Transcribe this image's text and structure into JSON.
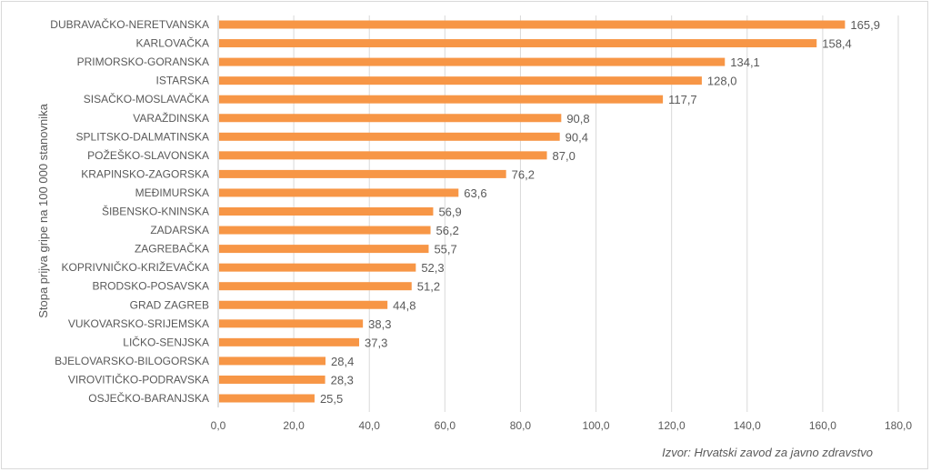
{
  "chart_data": {
    "type": "bar",
    "orientation": "horizontal",
    "categories": [
      "DUBRAVAČKO-NERETVANSKA",
      "KARLOVAČKA",
      "PRIMORSKO-GORANSKA",
      "ISTARSKA",
      "SISAČKO-MOSLAVAČKA",
      "VARAŽDINSKA",
      "SPLITSKO-DALMATINSKA",
      "POŽEŠKO-SLAVONSKA",
      "KRAPINSKO-ZAGORSKA",
      "MEĐIMURSKA",
      "ŠIBENSKO-KNINSKA",
      "ZADARSKA",
      "ZAGREBAČKA",
      "KOPRIVNIČKO-KRIŽEVAČKA",
      "BRODSKO-POSAVSKA",
      "GRAD ZAGREB",
      "VUKOVARSKO-SRIJEMSKA",
      "LIČKO-SENJSKA",
      "BJELOVARSKO-BILOGORSKA",
      "VIROVITIČKO-PODRAVSKA",
      "OSJEČKO-BARANJSKA"
    ],
    "values": [
      165.9,
      158.4,
      134.1,
      128.0,
      117.7,
      90.8,
      90.4,
      87.0,
      76.2,
      63.6,
      56.9,
      56.2,
      55.7,
      52.3,
      51.2,
      44.8,
      38.3,
      37.3,
      28.4,
      28.3,
      25.5
    ],
    "ylabel": "Stopa prijva gripe na 100 000 stanovnika",
    "xlabel": "",
    "xlim": [
      0,
      180
    ],
    "xticks": [
      0,
      20,
      40,
      60,
      80,
      100,
      120,
      140,
      160,
      180
    ],
    "grid": true,
    "bar_color": "#F79646",
    "decimal_separator": ",",
    "source_note": "Izvor: Hrvatski zavod za javno zdravstvo"
  }
}
